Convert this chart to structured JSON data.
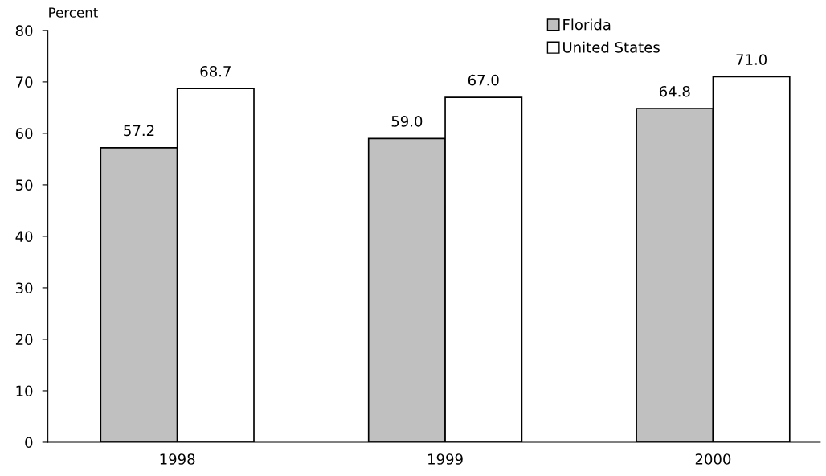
{
  "chart_data": {
    "type": "bar",
    "ylabel": "Percent",
    "categories": [
      "1998",
      "1999",
      "2000"
    ],
    "series": [
      {
        "name": "Florida",
        "color": "#c0c0c0",
        "values": [
          57.2,
          59.0,
          64.8
        ],
        "value_labels": [
          "57.2",
          "59.0",
          "64.8"
        ]
      },
      {
        "name": "United States",
        "color": "#ffffff",
        "values": [
          68.7,
          67.0,
          71.0
        ],
        "value_labels": [
          "68.7",
          "67.0",
          "71.0"
        ]
      }
    ],
    "ylim": [
      0,
      80
    ],
    "yticks": [
      0,
      10,
      20,
      30,
      40,
      50,
      60,
      70,
      80
    ],
    "grid": false,
    "legend": "top right"
  }
}
